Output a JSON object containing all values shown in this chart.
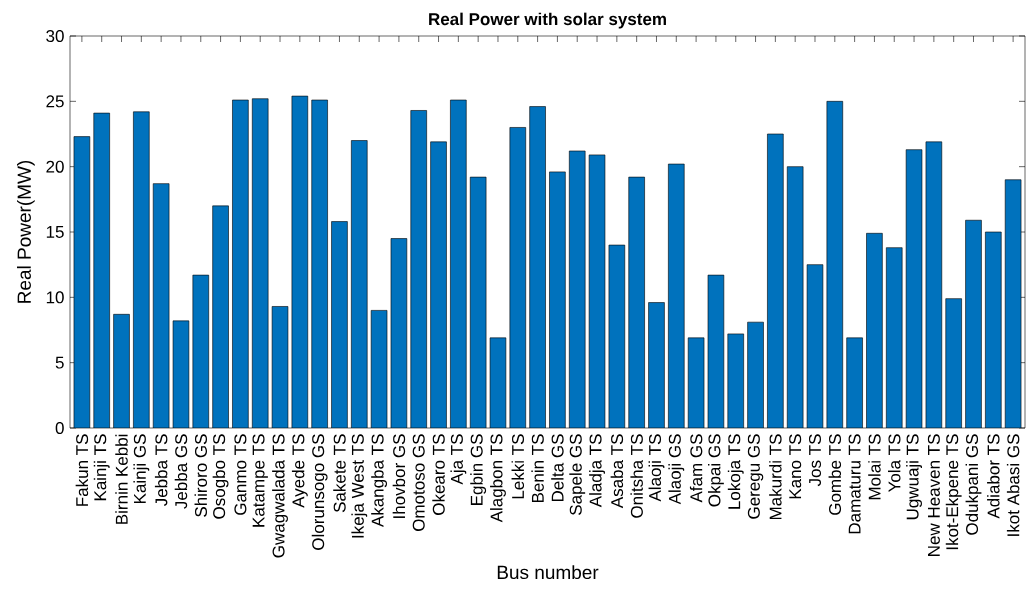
{
  "chart_data": {
    "type": "bar",
    "title": "Real Power with solar system",
    "xlabel": "Bus number",
    "ylabel": "Real Power(MW)",
    "categories": [
      "Fakun TS",
      "Kainji TS",
      "Birnin Kebbi",
      "Kainji GS",
      "Jebba TS",
      "Jebba GS",
      "Shiroro GS",
      "Osogbo TS",
      "Ganmo TS",
      "Katampe TS",
      "Gwagwalada TS",
      "Ayede TS",
      "Olorunsogo GS",
      "Sakete TS",
      "Ikeja West TS",
      "Akangba TS",
      "Ihovbor GS",
      "Omotoso GS",
      "Okearo TS",
      "Aja TS",
      "Egbin GS",
      "Alagbon TS",
      "Lekki TS",
      "Benin TS",
      "Delta GS",
      "Sapele GS",
      "Aladja TS",
      "Asaba TS",
      "Onitsha TS",
      "Alaoji TS",
      "Alaoji GS",
      "Afam GS",
      "Okpai GS",
      "Lokoja TS",
      "Geregu GS",
      "Makurdi TS",
      "Kano TS",
      "Jos TS",
      "Gombe TS",
      "Damaturu TS",
      "Molai TS",
      "Yola TS",
      "Ugwuaji TS",
      "New Heaven TS",
      "Ikot-Ekpene TS",
      "Odukpani GS",
      "Adiabor TS",
      "Ikot Abasi GS"
    ],
    "values": [
      22.3,
      24.1,
      8.7,
      24.2,
      18.7,
      8.2,
      11.7,
      17.0,
      25.1,
      25.2,
      9.3,
      25.4,
      25.1,
      15.8,
      22.0,
      9.0,
      14.5,
      24.3,
      21.9,
      25.1,
      19.2,
      6.9,
      23.0,
      24.6,
      19.6,
      21.2,
      20.9,
      14.0,
      19.2,
      9.6,
      20.2,
      6.9,
      11.7,
      7.2,
      8.1,
      22.5,
      20.0,
      12.5,
      25.0,
      6.9,
      14.9,
      13.8,
      21.3,
      21.9,
      9.9,
      15.9,
      15.0,
      19.0
    ],
    "color": "#0072bd",
    "ylim": [
      0,
      30
    ],
    "yticks": [
      0,
      5,
      10,
      15,
      20,
      25,
      30
    ]
  }
}
